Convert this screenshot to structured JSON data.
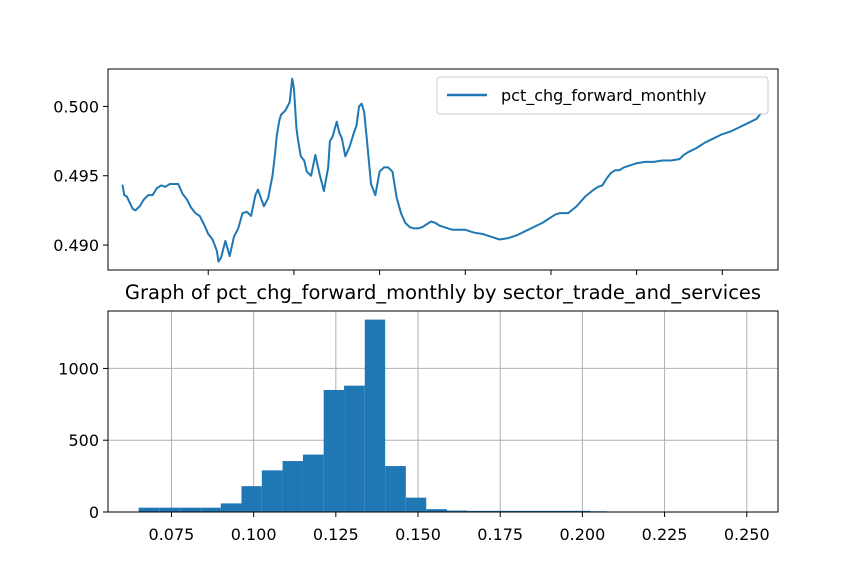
{
  "colors": {
    "series": "#1f77b4",
    "axes": "#000000",
    "grid": "#b0b0b0",
    "background": "#ffffff"
  },
  "chart_data": [
    {
      "type": "line",
      "title": "",
      "xlabel": "",
      "ylabel": "",
      "grid": false,
      "legend": "upper-right",
      "xlim": [
        -17,
        765
      ],
      "ylim": [
        0.4882,
        0.5027
      ],
      "yticks": [
        {
          "value": 0.49,
          "label": "0.490"
        },
        {
          "value": 0.495,
          "label": "0.495"
        },
        {
          "value": 0.5,
          "label": "0.500"
        }
      ],
      "xticks_unlabeled": [
        100,
        200,
        300,
        400,
        500,
        600,
        700
      ],
      "series": [
        {
          "name": "pct_chg_forward_monthly",
          "x": [
            0,
            2,
            5,
            8,
            12,
            15,
            20,
            25,
            30,
            35,
            40,
            45,
            50,
            55,
            60,
            65,
            70,
            75,
            80,
            85,
            90,
            95,
            100,
            105,
            110,
            112,
            115,
            120,
            125,
            130,
            135,
            140,
            145,
            150,
            155,
            158,
            162,
            165,
            170,
            175,
            178,
            180,
            183,
            185,
            190,
            195,
            198,
            200,
            203,
            205,
            208,
            212,
            215,
            220,
            225,
            230,
            235,
            240,
            242,
            245,
            250,
            253,
            256,
            260,
            265,
            270,
            273,
            276,
            279,
            282,
            285,
            290,
            295,
            300,
            305,
            310,
            315,
            320,
            325,
            330,
            335,
            340,
            345,
            350,
            355,
            360,
            365,
            370,
            375,
            380,
            385,
            390,
            395,
            400,
            405,
            410,
            420,
            430,
            440,
            450,
            460,
            470,
            480,
            490,
            500,
            505,
            510,
            520,
            530,
            540,
            550,
            555,
            560,
            565,
            570,
            575,
            580,
            585,
            590,
            600,
            610,
            620,
            630,
            640,
            650,
            655,
            660,
            670,
            680,
            690,
            700,
            705,
            710,
            720,
            730,
            740,
            745
          ],
          "y": [
            0.4943,
            0.4936,
            0.4935,
            0.4931,
            0.4926,
            0.4925,
            0.4928,
            0.4933,
            0.4936,
            0.4936,
            0.4941,
            0.4943,
            0.4942,
            0.4944,
            0.4944,
            0.4944,
            0.4937,
            0.4933,
            0.4927,
            0.4923,
            0.4921,
            0.4915,
            0.4908,
            0.4904,
            0.4896,
            0.4888,
            0.4891,
            0.4903,
            0.4892,
            0.4906,
            0.4912,
            0.4923,
            0.4924,
            0.4921,
            0.4936,
            0.494,
            0.4933,
            0.4928,
            0.4934,
            0.495,
            0.4966,
            0.4979,
            0.499,
            0.4994,
            0.4997,
            0.5003,
            0.502,
            0.5013,
            0.4984,
            0.4975,
            0.4964,
            0.4961,
            0.4953,
            0.495,
            0.4965,
            0.4951,
            0.4939,
            0.4956,
            0.4975,
            0.4978,
            0.4989,
            0.4981,
            0.4977,
            0.4964,
            0.4971,
            0.4981,
            0.4986,
            0.5,
            0.5002,
            0.4996,
            0.4977,
            0.4944,
            0.4936,
            0.4953,
            0.4956,
            0.4956,
            0.4953,
            0.4934,
            0.4923,
            0.4916,
            0.4913,
            0.4912,
            0.4912,
            0.4913,
            0.4915,
            0.4917,
            0.4916,
            0.4914,
            0.4913,
            0.4912,
            0.4911,
            0.4911,
            0.4911,
            0.4911,
            0.491,
            0.4909,
            0.4908,
            0.4906,
            0.4904,
            0.4905,
            0.4907,
            0.491,
            0.4913,
            0.4916,
            0.492,
            0.4922,
            0.4923,
            0.4923,
            0.4928,
            0.4935,
            0.494,
            0.4942,
            0.4943,
            0.4948,
            0.4952,
            0.4954,
            0.4954,
            0.4956,
            0.4957,
            0.4959,
            0.496,
            0.496,
            0.4961,
            0.4961,
            0.4962,
            0.4965,
            0.4967,
            0.497,
            0.4974,
            0.4977,
            0.498,
            0.4981,
            0.4982,
            0.4985,
            0.4988,
            0.4991,
            0.4995
          ]
        }
      ]
    },
    {
      "type": "bar",
      "title": "Graph of pct_chg_forward_monthly by sector_trade_and_services",
      "xlabel": "",
      "ylabel": "",
      "grid": true,
      "xlim": [
        0.0557,
        0.2595
      ],
      "ylim": [
        0,
        1400
      ],
      "xticks": [
        {
          "value": 0.075,
          "label": "0.075"
        },
        {
          "value": 0.1,
          "label": "0.100"
        },
        {
          "value": 0.125,
          "label": "0.125"
        },
        {
          "value": 0.15,
          "label": "0.150"
        },
        {
          "value": 0.175,
          "label": "0.175"
        },
        {
          "value": 0.2,
          "label": "0.200"
        },
        {
          "value": 0.225,
          "label": "0.225"
        },
        {
          "value": 0.25,
          "label": "0.250"
        }
      ],
      "yticks": [
        {
          "value": 0,
          "label": "0"
        },
        {
          "value": 500,
          "label": "500"
        },
        {
          "value": 1000,
          "label": "1000"
        }
      ],
      "bin_edges": [
        0.065,
        0.0713,
        0.0775,
        0.0838,
        0.09,
        0.0963,
        0.1025,
        0.1088,
        0.115,
        0.1213,
        0.1275,
        0.1338,
        0.14,
        0.1463,
        0.1525,
        0.1588,
        0.165,
        0.1713,
        0.1775,
        0.1838,
        0.19,
        0.1963,
        0.2025,
        0.2075
      ],
      "values": [
        30,
        30,
        30,
        30,
        60,
        180,
        290,
        355,
        400,
        850,
        880,
        1340,
        320,
        100,
        20,
        10,
        8,
        8,
        8,
        8,
        8,
        8,
        5
      ]
    }
  ]
}
